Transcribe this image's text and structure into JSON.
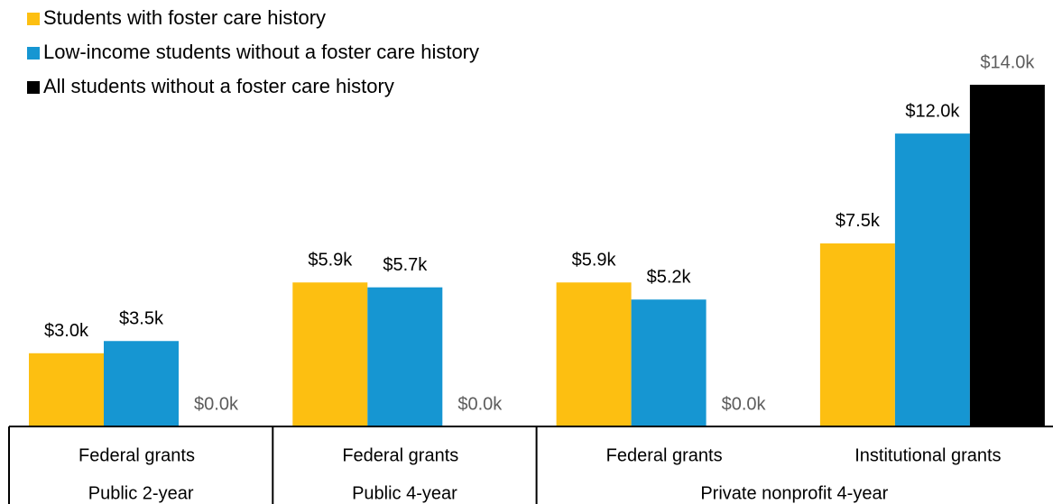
{
  "chart_data": {
    "type": "bar",
    "groups": [
      {
        "name": "Public 2-year",
        "categories": [
          "Federal grants"
        ]
      },
      {
        "name": "Public 4-year",
        "categories": [
          "Federal grants"
        ]
      },
      {
        "name": "Private nonprofit 4-year",
        "categories": [
          "Federal grants",
          "Institutional grants"
        ]
      }
    ],
    "series": [
      {
        "name": "Students with foster care history",
        "color": "#fdbf11",
        "label_color": "#000000",
        "values": [
          3.0,
          5.9,
          5.9,
          7.5
        ],
        "value_labels": [
          "$3.0k",
          "$5.9k",
          "$5.9k",
          "$7.5k"
        ]
      },
      {
        "name": "Low-income students without a foster care history",
        "color": "#1696d2",
        "label_color": "#000000",
        "values": [
          3.5,
          5.7,
          5.2,
          12.0
        ],
        "value_labels": [
          "$3.5k",
          "$5.7k",
          "$5.2k",
          "$12.0k"
        ]
      },
      {
        "name": "All students without a foster care history",
        "color": "#000000",
        "label_color": "#5c5c5c",
        "values": [
          0.0,
          0.0,
          0.0,
          14.0
        ],
        "value_labels": [
          "$0.0k",
          "$0.0k",
          "$0.0k",
          "$14.0k"
        ]
      }
    ]
  }
}
